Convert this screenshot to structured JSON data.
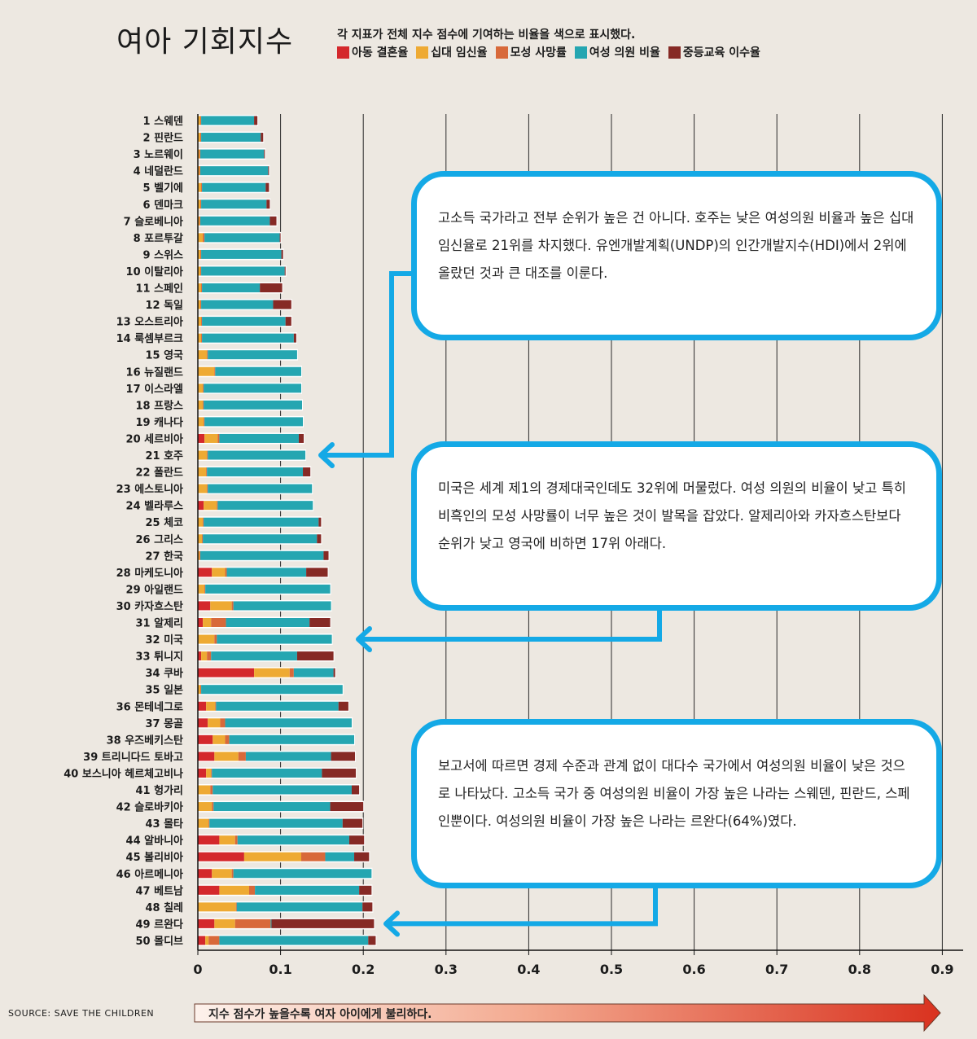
{
  "title": "여아 기회지수",
  "subtitle": "각 지표가 전체 지수 점수에 기여하는 비율을 색으로 표시했다.",
  "colors": {
    "child_marriage": "#d4282c",
    "teen_pregnancy": "#eeaa33",
    "maternal_mortality": "#d8693a",
    "women_parliament": "#25a6b1",
    "secondary_school": "#862a25",
    "callout_border": "#14a9e6"
  },
  "callouts": [
    {
      "text": "고소득 국가라고 전부 순위가 높은 건 아니다. 호주는 낮은 여성의원 비율과 높은 십대 임신율로 21위를 차지했다. 유엔개발계획(UNDP)의 인간개발지수(HDI)에서 2위에 올랐던 것과 큰 대조를 이룬다."
    },
    {
      "text": "미국은 세계 제1의 경제대국인데도 32위에 머물렀다. 여성 의원의 비율이 낮고 특히 비흑인의 모성 사망률이 너무 높은 것이 발목을 잡았다. 알제리아와 카자흐스탄보다 순위가 낮고 영국에 비하면 17위 아래다."
    },
    {
      "text": "보고서에 따르면 경제 수준과 관계 없이 대다수 국가에서 여성의원 비율이 낮은 것으로 나타났다. 고소득 국가 중 여성의원 비율이 가장 높은 나라는 스웨덴, 핀란드, 스페인뿐이다. 여성의원 비율이 가장 높은 나라는 르완다(64%)였다."
    }
  ],
  "source": "SOURCE: SAVE THE CHILDREN",
  "arrow_label": "지수 점수가 높을수록 여자 아이에게 불리하다.",
  "chart_data": {
    "type": "bar",
    "orientation": "horizontal",
    "stacked": true,
    "title": "여아 기회지수",
    "xlim": [
      0,
      0.9
    ],
    "xticks": [
      "0",
      "0.1",
      "0.2",
      "0.3",
      "0.4",
      "0.5",
      "0.6",
      "0.7",
      "0.8",
      "0.9"
    ],
    "xtick_values": [
      0,
      0.1,
      0.2,
      0.3,
      0.4,
      0.5,
      0.6,
      0.7,
      0.8,
      0.9
    ],
    "grid": true,
    "legend_position": "top",
    "series": [
      {
        "name": "아동 결혼율",
        "color": "#d4282c"
      },
      {
        "name": "십대 임신율",
        "color": "#eeaa33"
      },
      {
        "name": "모성 사망률",
        "color": "#d8693a"
      },
      {
        "name": "여성 의원 비율",
        "color": "#25a6b1"
      },
      {
        "name": "중등교육 이수율",
        "color": "#862a25"
      }
    ],
    "categories": [
      {
        "label": "1 스웨덴",
        "values": [
          0.0,
          0.003,
          0.001,
          0.064,
          0.004
        ]
      },
      {
        "label": "2 핀란드",
        "values": [
          0.0,
          0.003,
          0.001,
          0.072,
          0.003
        ]
      },
      {
        "label": "3 노르웨이",
        "values": [
          0.0,
          0.002,
          0.001,
          0.077,
          0.001
        ]
      },
      {
        "label": "4 네덜란드",
        "values": [
          0.0,
          0.002,
          0.001,
          0.082,
          0.001
        ]
      },
      {
        "label": "5 벨기에",
        "values": [
          0.0,
          0.004,
          0.001,
          0.077,
          0.004
        ]
      },
      {
        "label": "6 덴마크",
        "values": [
          0.0,
          0.003,
          0.001,
          0.079,
          0.004
        ]
      },
      {
        "label": "7 슬로베니아",
        "values": [
          0.0,
          0.002,
          0.001,
          0.084,
          0.008
        ]
      },
      {
        "label": "8 포르투갈",
        "values": [
          0.0,
          0.006,
          0.002,
          0.091,
          0.001
        ]
      },
      {
        "label": "9 스위스",
        "values": [
          0.0,
          0.003,
          0.001,
          0.097,
          0.002
        ]
      },
      {
        "label": "10 이탈리아",
        "values": [
          0.0,
          0.003,
          0.001,
          0.101,
          0.001
        ]
      },
      {
        "label": "11 스페인",
        "values": [
          0.0,
          0.004,
          0.001,
          0.07,
          0.027
        ]
      },
      {
        "label": "12 독일",
        "values": [
          0.0,
          0.003,
          0.001,
          0.087,
          0.022
        ]
      },
      {
        "label": "13 오스트리아",
        "values": [
          0.0,
          0.004,
          0.001,
          0.101,
          0.007
        ]
      },
      {
        "label": "14 룩셈부르크",
        "values": [
          0.0,
          0.004,
          0.001,
          0.111,
          0.003
        ]
      },
      {
        "label": "15 영국",
        "values": [
          0.0,
          0.011,
          0.001,
          0.108,
          0.0
        ]
      },
      {
        "label": "16 뉴질랜드",
        "values": [
          0.0,
          0.02,
          0.001,
          0.104,
          0.0
        ]
      },
      {
        "label": "17 이스라엘",
        "values": [
          0.0,
          0.006,
          0.001,
          0.118,
          0.0
        ]
      },
      {
        "label": "18 프랑스",
        "values": [
          0.0,
          0.006,
          0.001,
          0.119,
          0.0
        ]
      },
      {
        "label": "19 캐나다",
        "values": [
          0.0,
          0.007,
          0.001,
          0.119,
          0.0
        ]
      },
      {
        "label": "20 세르비아",
        "values": [
          0.008,
          0.016,
          0.002,
          0.096,
          0.006
        ]
      },
      {
        "label": "21 호주",
        "values": [
          0.0,
          0.011,
          0.001,
          0.118,
          0.0
        ]
      },
      {
        "label": "22 폴란드",
        "values": [
          0.0,
          0.01,
          0.001,
          0.116,
          0.009
        ]
      },
      {
        "label": "23 에스토니아",
        "values": [
          0.0,
          0.011,
          0.001,
          0.126,
          0.0
        ]
      },
      {
        "label": "24 벨라루스",
        "values": [
          0.007,
          0.016,
          0.001,
          0.115,
          0.0
        ]
      },
      {
        "label": "25 체코",
        "values": [
          0.0,
          0.006,
          0.001,
          0.139,
          0.003
        ]
      },
      {
        "label": "26 그리스",
        "values": [
          0.0,
          0.005,
          0.001,
          0.138,
          0.005
        ]
      },
      {
        "label": "27 한국",
        "values": [
          0.0,
          0.002,
          0.001,
          0.149,
          0.006
        ]
      },
      {
        "label": "28 마케도니아",
        "values": [
          0.017,
          0.016,
          0.002,
          0.096,
          0.026
        ]
      },
      {
        "label": "29 아일랜드",
        "values": [
          0.0,
          0.008,
          0.001,
          0.151,
          0.0
        ]
      },
      {
        "label": "30 카자흐스탄",
        "values": [
          0.015,
          0.026,
          0.002,
          0.118,
          0.0
        ]
      },
      {
        "label": "31 알제리",
        "values": [
          0.006,
          0.01,
          0.018,
          0.101,
          0.025
        ]
      },
      {
        "label": "32 미국",
        "values": [
          0.0,
          0.02,
          0.003,
          0.139,
          0.0
        ]
      },
      {
        "label": "33 튀니지",
        "values": [
          0.004,
          0.007,
          0.005,
          0.104,
          0.044
        ]
      },
      {
        "label": "34 쿠바",
        "values": [
          0.068,
          0.043,
          0.005,
          0.048,
          0.002
        ]
      },
      {
        "label": "35 일본",
        "values": [
          0.0,
          0.003,
          0.001,
          0.171,
          0.0
        ]
      },
      {
        "label": "36 몬테네그로",
        "values": [
          0.01,
          0.011,
          0.001,
          0.148,
          0.012
        ]
      },
      {
        "label": "37 몽골",
        "values": [
          0.012,
          0.015,
          0.006,
          0.153,
          0.0
        ]
      },
      {
        "label": "38 우즈베키스탄",
        "values": [
          0.018,
          0.015,
          0.005,
          0.151,
          0.0
        ]
      },
      {
        "label": "39 트리니다드 토바고",
        "values": [
          0.02,
          0.029,
          0.009,
          0.103,
          0.029
        ]
      },
      {
        "label": "40 보스니아 헤르체고비나",
        "values": [
          0.01,
          0.006,
          0.001,
          0.133,
          0.041
        ]
      },
      {
        "label": "41 헝가리",
        "values": [
          0.0,
          0.015,
          0.003,
          0.168,
          0.009
        ]
      },
      {
        "label": "42 슬로바키아",
        "values": [
          0.0,
          0.017,
          0.002,
          0.141,
          0.04
        ]
      },
      {
        "label": "43 몰타",
        "values": [
          0.0,
          0.013,
          0.001,
          0.161,
          0.024
        ]
      },
      {
        "label": "44 알바니아",
        "values": [
          0.026,
          0.019,
          0.003,
          0.135,
          0.018
        ]
      },
      {
        "label": "45 볼리비아",
        "values": [
          0.056,
          0.069,
          0.029,
          0.035,
          0.018
        ]
      },
      {
        "label": "46 아르메니아",
        "values": [
          0.017,
          0.024,
          0.002,
          0.167,
          0.0
        ]
      },
      {
        "label": "47 베트남",
        "values": [
          0.026,
          0.036,
          0.007,
          0.126,
          0.015
        ]
      },
      {
        "label": "48 칠레",
        "values": [
          0.0,
          0.046,
          0.001,
          0.152,
          0.012
        ]
      },
      {
        "label": "49 르완다",
        "values": [
          0.02,
          0.025,
          0.043,
          0.001,
          0.124
        ]
      },
      {
        "label": "50 몰디브",
        "values": [
          0.009,
          0.004,
          0.013,
          0.18,
          0.009
        ]
      }
    ]
  }
}
